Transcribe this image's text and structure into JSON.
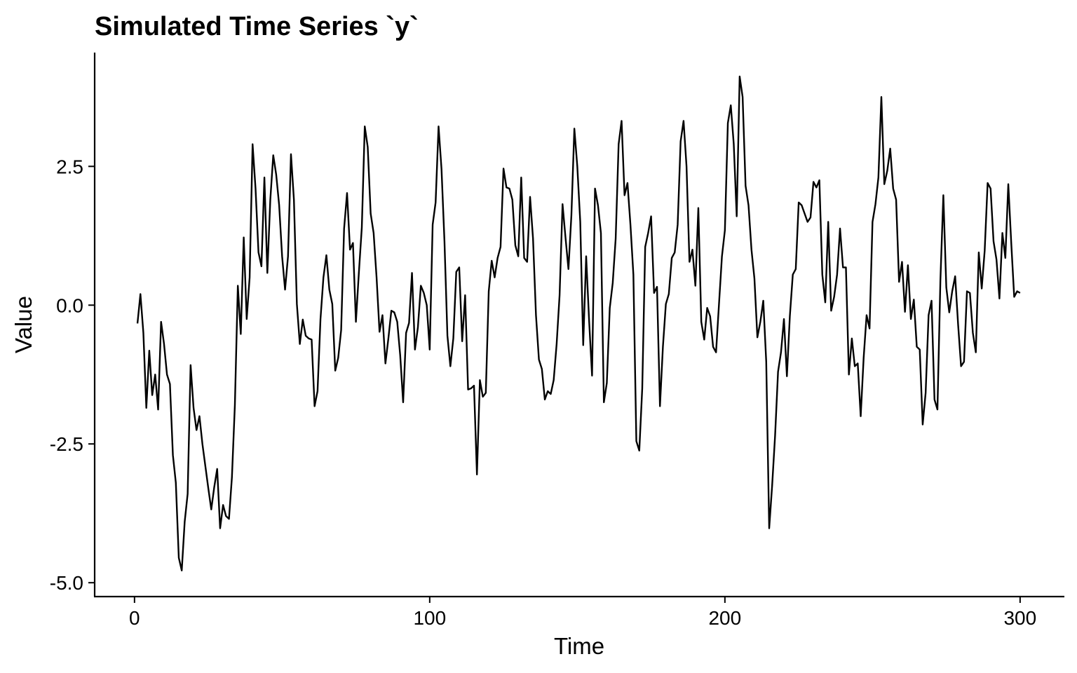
{
  "chart_data": {
    "type": "line",
    "title": "Simulated Time Series `y`",
    "xlabel": "Time",
    "ylabel": "Value",
    "xlim": [
      -13.5,
      315
    ],
    "ylim": [
      -5.25,
      4.55
    ],
    "x_ticks": [
      0,
      100,
      200,
      300
    ],
    "x_tick_labels": [
      "0",
      "100",
      "200",
      "300"
    ],
    "y_ticks": [
      -5.0,
      -2.5,
      0.0,
      2.5
    ],
    "y_tick_labels": [
      "-5.0",
      "-2.5",
      "0.0",
      "2.5"
    ],
    "grid": false,
    "line_color": "#000000",
    "series": [
      {
        "x": [
          1,
          2,
          3,
          4,
          5,
          6,
          7,
          8,
          9,
          10,
          11,
          12,
          13,
          14,
          15,
          16,
          17,
          18,
          19,
          20,
          21,
          22,
          23,
          24,
          25,
          26,
          27,
          28,
          29,
          30,
          31,
          32,
          33,
          34,
          35,
          36,
          37,
          38,
          39,
          40,
          41,
          42,
          43,
          44,
          45,
          46,
          47,
          48,
          49,
          50,
          51,
          52,
          53,
          54,
          55,
          56,
          57,
          58,
          59,
          60,
          61,
          62,
          63,
          64,
          65,
          66,
          67,
          68,
          69,
          70,
          71,
          72,
          73,
          74,
          75,
          76,
          77,
          78,
          79,
          80,
          81,
          82,
          83,
          84,
          85,
          86,
          87,
          88,
          89,
          90,
          91,
          92,
          93,
          94,
          95,
          96,
          97,
          98,
          99,
          100,
          101,
          102,
          103,
          104,
          105,
          106,
          107,
          108,
          109,
          110,
          111,
          112,
          113,
          114,
          115,
          116,
          117,
          118,
          119,
          120,
          121,
          122,
          123,
          124,
          125,
          126,
          127,
          128,
          129,
          130,
          131,
          132,
          133,
          134,
          135,
          136,
          137,
          138,
          139,
          140,
          141,
          142,
          143,
          144,
          145,
          146,
          147,
          148,
          149,
          150,
          151,
          152,
          153,
          154,
          155,
          156,
          157,
          158,
          159,
          160,
          161,
          162,
          163,
          164,
          165,
          166,
          167,
          168,
          169,
          170,
          171,
          172,
          173,
          174,
          175,
          176,
          177,
          178,
          179,
          180,
          181,
          182,
          183,
          184,
          185,
          186,
          187,
          188,
          189,
          190,
          191,
          192,
          193,
          194,
          195,
          196,
          197,
          198,
          199,
          200,
          201,
          202,
          203,
          204,
          205,
          206,
          207,
          208,
          209,
          210,
          211,
          212,
          213,
          214,
          215,
          216,
          217,
          218,
          219,
          220,
          221,
          222,
          223,
          224,
          225,
          226,
          227,
          228,
          229,
          230,
          231,
          232,
          233,
          234,
          235,
          236,
          237,
          238,
          239,
          240,
          241,
          242,
          243,
          244,
          245,
          246,
          247,
          248,
          249,
          250,
          251,
          252,
          253,
          254,
          255,
          256,
          257,
          258,
          259,
          260,
          261,
          262,
          263,
          264,
          265,
          266,
          267,
          268,
          269,
          270,
          271,
          272,
          273,
          274,
          275,
          276,
          277,
          278,
          279,
          280,
          281,
          282,
          283,
          284,
          285,
          286,
          287,
          288,
          289,
          290,
          291,
          292,
          293,
          294,
          295,
          296,
          297,
          298,
          299,
          300
        ],
        "values": [
          -0.33,
          0.2,
          -0.5,
          -1.85,
          -0.82,
          -1.62,
          -1.25,
          -1.88,
          -0.3,
          -0.7,
          -1.25,
          -1.42,
          -2.7,
          -3.2,
          -4.55,
          -4.78,
          -3.9,
          -3.4,
          -1.08,
          -1.85,
          -2.25,
          -2.0,
          -2.5,
          -2.9,
          -3.3,
          -3.68,
          -3.28,
          -2.95,
          -4.02,
          -3.6,
          -3.8,
          -3.85,
          -3.1,
          -1.8,
          0.35,
          -0.52,
          1.22,
          -0.25,
          0.5,
          2.9,
          2.1,
          0.95,
          0.7,
          2.3,
          0.58,
          1.9,
          2.7,
          2.35,
          1.8,
          0.88,
          0.28,
          0.88,
          2.72,
          1.9,
          0.02,
          -0.7,
          -0.26,
          -0.55,
          -0.6,
          -0.62,
          -1.82,
          -1.55,
          -0.25,
          0.5,
          0.9,
          0.28,
          0.02,
          -1.18,
          -0.95,
          -0.45,
          1.38,
          2.02,
          1.0,
          1.12,
          -0.3,
          0.58,
          1.4,
          3.22,
          2.85,
          1.65,
          1.3,
          0.5,
          -0.48,
          -0.18,
          -1.05,
          -0.6,
          -0.1,
          -0.13,
          -0.3,
          -0.9,
          -1.75,
          -0.5,
          -0.32,
          0.58,
          -0.8,
          -0.4,
          0.35,
          0.22,
          0.0,
          -0.8,
          1.45,
          1.85,
          3.22,
          2.45,
          1.15,
          -0.55,
          -1.1,
          -0.6,
          0.6,
          0.68,
          -0.65,
          0.18,
          -1.52,
          -1.5,
          -1.45,
          -3.05,
          -1.35,
          -1.65,
          -1.58,
          0.25,
          0.8,
          0.5,
          0.85,
          1.05,
          2.46,
          2.12,
          2.1,
          1.9,
          1.08,
          0.88,
          2.3,
          0.85,
          0.78,
          1.95,
          1.2,
          -0.18,
          -0.98,
          -1.15,
          -1.7,
          -1.55,
          -1.6,
          -1.35,
          -0.7,
          0.18,
          1.82,
          1.22,
          0.65,
          1.62,
          3.18,
          2.5,
          1.5,
          -0.72,
          0.88,
          -0.28,
          -1.27,
          2.1,
          1.8,
          1.3,
          -1.75,
          -1.4,
          -0.05,
          0.4,
          1.2,
          2.9,
          3.32,
          1.98,
          2.2,
          1.45,
          0.55,
          -2.45,
          -2.62,
          -1.5,
          1.05,
          1.3,
          1.6,
          0.22,
          0.33,
          -1.82,
          -0.75,
          0.02,
          0.2,
          0.85,
          0.95,
          1.45,
          2.95,
          3.32,
          2.5,
          0.78,
          1.0,
          0.35,
          1.75,
          -0.3,
          -0.62,
          -0.05,
          -0.2,
          -0.75,
          -0.85,
          0.02,
          0.88,
          1.35,
          3.28,
          3.6,
          2.9,
          1.6,
          4.12,
          3.75,
          2.15,
          1.8,
          1.0,
          0.48,
          -0.58,
          -0.3,
          0.08,
          -1.02,
          -4.02,
          -3.25,
          -2.35,
          -1.2,
          -0.85,
          -0.25,
          -1.28,
          -0.2,
          0.55,
          0.65,
          1.85,
          1.8,
          1.65,
          1.5,
          1.58,
          2.22,
          2.12,
          2.25,
          0.55,
          0.05,
          1.5,
          -0.1,
          0.15,
          0.55,
          1.38,
          0.68,
          0.68,
          -1.25,
          -0.6,
          -1.1,
          -1.05,
          -2.0,
          -0.95,
          -0.18,
          -0.42,
          1.5,
          1.82,
          2.3,
          3.75,
          2.18,
          2.42,
          2.82,
          2.1,
          1.9,
          0.42,
          0.78,
          -0.12,
          0.72,
          -0.25,
          0.1,
          -0.75,
          -0.8,
          -2.15,
          -1.58,
          -0.18,
          0.08,
          -1.7,
          -1.88,
          0.45,
          1.98,
          0.32,
          -0.13,
          0.25,
          0.52,
          -0.35,
          -1.1,
          -1.02,
          0.25,
          0.22,
          -0.5,
          -0.85,
          0.95,
          0.3,
          0.98,
          2.2,
          2.1,
          1.15,
          0.82,
          0.12,
          1.3,
          0.85,
          2.18,
          1.12,
          0.15,
          0.25,
          0.22
        ]
      }
    ]
  }
}
